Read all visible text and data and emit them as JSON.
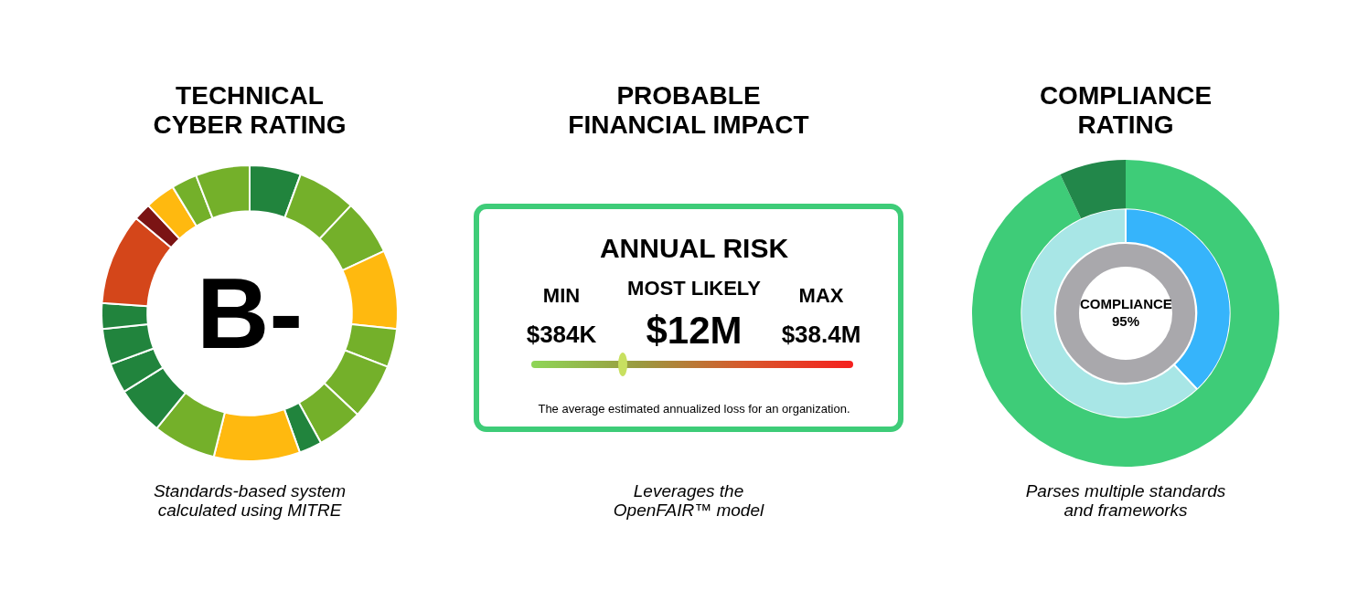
{
  "chart_data": [
    {
      "type": "donut",
      "title": "TECHNICAL CYBER RATING",
      "categories": [
        null,
        null,
        null,
        null,
        null,
        null,
        null,
        null,
        null,
        null,
        null,
        null,
        null,
        null,
        null,
        null,
        null,
        null,
        null
      ],
      "values": [
        5.6,
        6.4,
        6.1,
        8.6,
        4.2,
        6.1,
        5.0,
        2.5,
        9.4,
        6.9,
        5.3,
        3.3,
        3.9,
        2.8,
        10.0,
        1.9,
        3.3,
        2.8,
        5.9
      ],
      "colors": [
        "#21843d",
        "#74b02a",
        "#74b02a",
        "#ffb90f",
        "#74b02a",
        "#74b02a",
        "#74b02a",
        "#21843d",
        "#ffb90f",
        "#74b02a",
        "#21843d",
        "#21843d",
        "#21843d",
        "#21843d",
        "#d4461a",
        "#7b1414",
        "#ffb90f",
        "#74b02a",
        "#74b02a"
      ],
      "annotations": [
        "B-",
        "Standards-based system calculated using MITRE"
      ]
    },
    {
      "type": "other",
      "title": "PROBABLE FINANCIAL IMPACT",
      "annotations": [
        "ANNUAL RISK",
        "MIN",
        "$384K",
        "MOST LIKELY",
        "$12M",
        "MAX",
        "$38.4M",
        "The average estimated annualized loss for an organization.",
        "Leverages the OpenFAIR™ model"
      ]
    },
    {
      "type": "donut",
      "title": "COMPLIANCE RATING",
      "categories": [
        null,
        null
      ],
      "series": [
        {
          "values": [
            93,
            7
          ],
          "colors": [
            "#3ecc78",
            "#22874a"
          ]
        },
        {
          "values": [
            38,
            62
          ],
          "colors": [
            "#36b4fb",
            "#a8e6e6"
          ]
        }
      ],
      "annotations": [
        "COMPLIANCE 95%",
        "Parses multiple standards and frameworks"
      ]
    }
  ]
}
